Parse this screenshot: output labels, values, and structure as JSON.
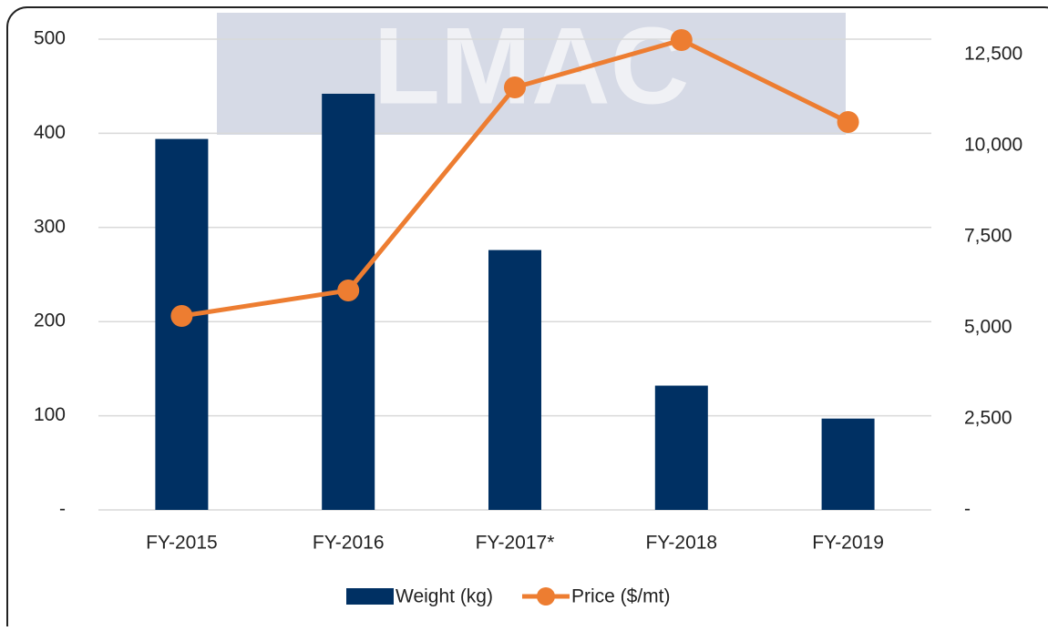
{
  "chart_data": {
    "type": "bar-line",
    "watermark": "LMAC",
    "categories": [
      "FY-2015",
      "FY-2016",
      "FY-2017*",
      "FY-2018",
      "FY-2019"
    ],
    "series": [
      {
        "name": "Weight (kg)",
        "type": "bar",
        "color": "#003063",
        "values": [
          394,
          442,
          276,
          132,
          97
        ]
      },
      {
        "name": "Price ($/mt)",
        "type": "line",
        "axis": "y2",
        "color": "#ED7D31",
        "values": [
          5325,
          6025,
          11600,
          12900,
          10650
        ]
      }
    ],
    "ylim": [
      0,
      500
    ],
    "yticks": [
      {
        "value": 0,
        "label": "-"
      },
      100,
      200,
      300,
      400,
      500
    ],
    "y2lim": [
      0,
      12500
    ],
    "y2ticks": [
      {
        "value": 0,
        "label": "-"
      },
      {
        "value": 2500,
        "label": "2,500"
      },
      {
        "value": 5000,
        "label": "5,000"
      },
      {
        "value": 7500,
        "label": "7,500"
      },
      {
        "value": 10000,
        "label": "10,000"
      },
      {
        "value": 12500,
        "label": "12,500"
      }
    ],
    "grid": true,
    "legend": "bottom"
  }
}
